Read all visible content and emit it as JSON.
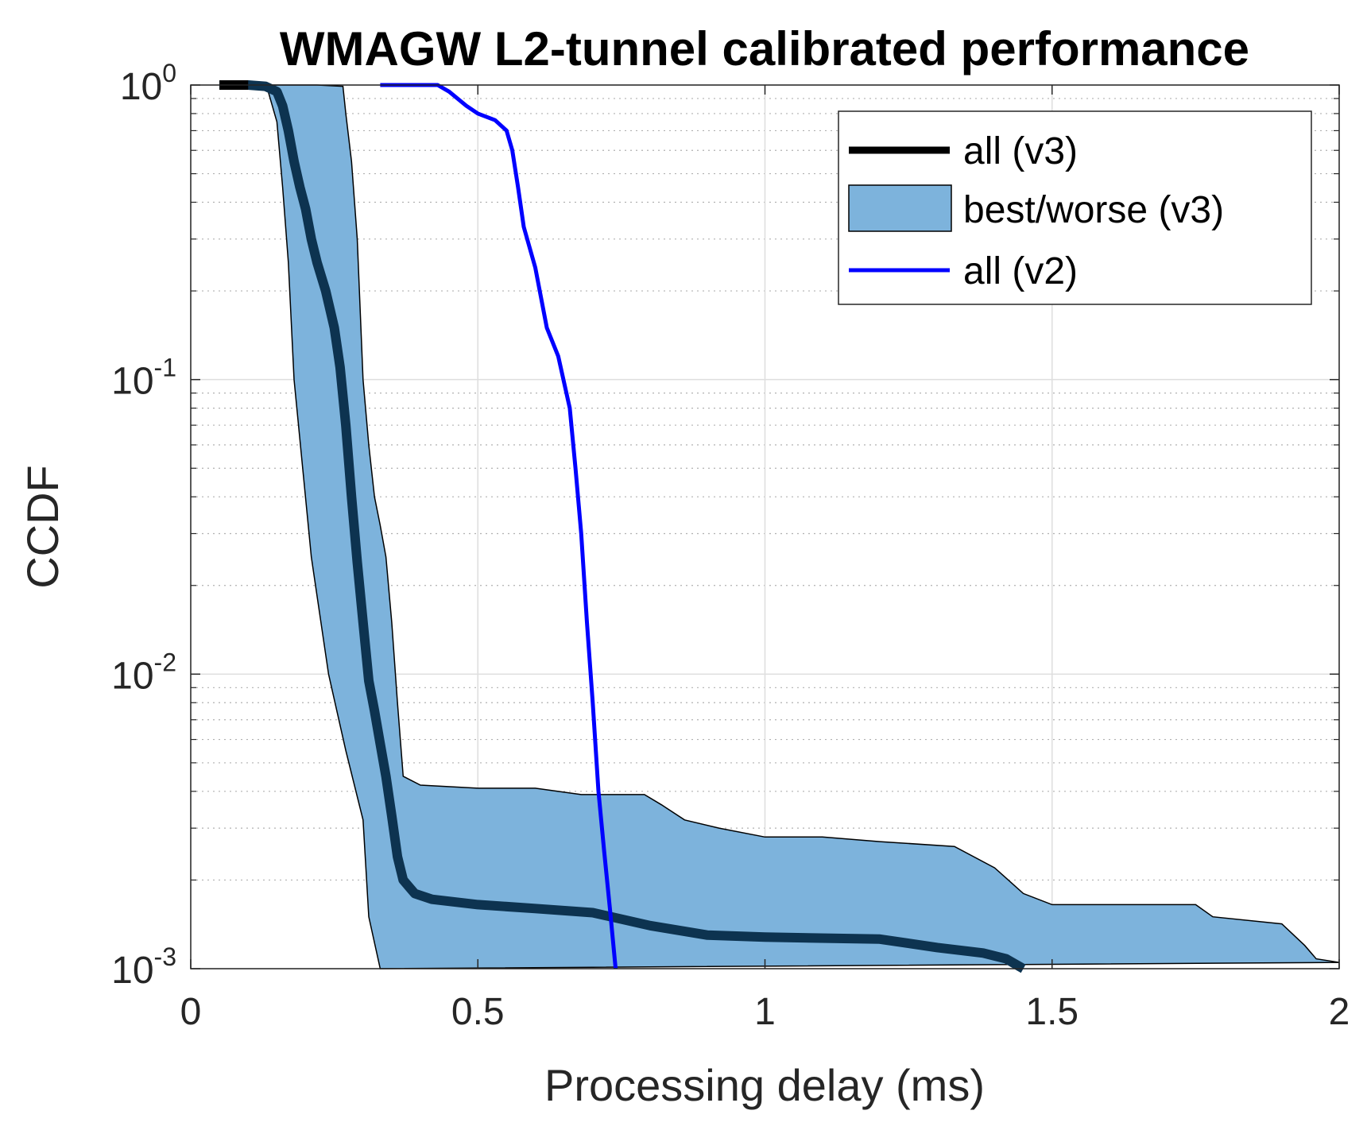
{
  "chart_data": {
    "type": "line",
    "title": "WMAGW L2-tunnel calibrated performance",
    "xlabel": "Processing delay (ms)",
    "ylabel": "CCDF",
    "xlim": [
      0,
      2
    ],
    "ylim": [
      0.001,
      1
    ],
    "yscale": "log",
    "grid": true,
    "legend_position": "top-right",
    "x_ticks": [
      {
        "value": 0,
        "label": "0"
      },
      {
        "value": 0.5,
        "label": "0.5"
      },
      {
        "value": 1,
        "label": "1"
      },
      {
        "value": 1.5,
        "label": "1.5"
      },
      {
        "value": 2,
        "label": "2"
      }
    ],
    "y_ticks": [
      {
        "value": 1,
        "base": "10",
        "exp": "0"
      },
      {
        "value": 0.1,
        "base": "10",
        "exp": "-1"
      },
      {
        "value": 0.01,
        "base": "10",
        "exp": "-2"
      },
      {
        "value": 0.001,
        "base": "10",
        "exp": "-3"
      }
    ],
    "series": [
      {
        "name": "all (v3)",
        "kind": "line",
        "color": "#0d3350",
        "legend_color": "#000000",
        "points": [
          [
            0.05,
            1
          ],
          [
            0.1,
            1
          ],
          [
            0.13,
            0.99
          ],
          [
            0.15,
            0.95
          ],
          [
            0.16,
            0.85
          ],
          [
            0.17,
            0.7
          ],
          [
            0.18,
            0.55
          ],
          [
            0.19,
            0.45
          ],
          [
            0.2,
            0.38
          ],
          [
            0.21,
            0.3
          ],
          [
            0.22,
            0.25
          ],
          [
            0.235,
            0.2
          ],
          [
            0.25,
            0.15
          ],
          [
            0.26,
            0.11
          ],
          [
            0.27,
            0.07
          ],
          [
            0.28,
            0.04
          ],
          [
            0.29,
            0.024
          ],
          [
            0.3,
            0.015
          ],
          [
            0.31,
            0.0095
          ],
          [
            0.32,
            0.0075
          ],
          [
            0.33,
            0.0058
          ],
          [
            0.34,
            0.0045
          ],
          [
            0.35,
            0.0033
          ],
          [
            0.36,
            0.0024
          ],
          [
            0.37,
            0.002
          ],
          [
            0.39,
            0.0018
          ],
          [
            0.42,
            0.00172
          ],
          [
            0.5,
            0.00165
          ],
          [
            0.6,
            0.0016
          ],
          [
            0.7,
            0.00155
          ],
          [
            0.8,
            0.0014
          ],
          [
            0.9,
            0.0013
          ],
          [
            1.0,
            0.00128
          ],
          [
            1.2,
            0.00126
          ],
          [
            1.3,
            0.00118
          ],
          [
            1.38,
            0.00113
          ],
          [
            1.42,
            0.00108
          ],
          [
            1.45,
            0.001
          ]
        ]
      },
      {
        "name": "best/worse (v3)",
        "kind": "band",
        "color": "#7db3dc",
        "edge_color": "#000000",
        "upper": [
          [
            0.05,
            1
          ],
          [
            0.22,
            1
          ],
          [
            0.265,
            0.99
          ],
          [
            0.27,
            0.8
          ],
          [
            0.28,
            0.55
          ],
          [
            0.29,
            0.3
          ],
          [
            0.3,
            0.1
          ],
          [
            0.31,
            0.06
          ],
          [
            0.32,
            0.04
          ],
          [
            0.33,
            0.032
          ],
          [
            0.34,
            0.025
          ],
          [
            0.35,
            0.015
          ],
          [
            0.36,
            0.008
          ],
          [
            0.365,
            0.006
          ],
          [
            0.37,
            0.0045
          ],
          [
            0.4,
            0.0042
          ],
          [
            0.5,
            0.0041
          ],
          [
            0.6,
            0.0041
          ],
          [
            0.68,
            0.0039
          ],
          [
            0.79,
            0.0039
          ],
          [
            0.82,
            0.0036
          ],
          [
            0.86,
            0.0032
          ],
          [
            0.92,
            0.003
          ],
          [
            1.0,
            0.0028
          ],
          [
            1.1,
            0.0028
          ],
          [
            1.2,
            0.0027
          ],
          [
            1.33,
            0.0026
          ],
          [
            1.4,
            0.0022
          ],
          [
            1.45,
            0.0018
          ],
          [
            1.5,
            0.00165
          ],
          [
            1.75,
            0.00165
          ],
          [
            1.78,
            0.0015
          ],
          [
            1.9,
            0.00142
          ],
          [
            1.94,
            0.0012
          ],
          [
            1.96,
            0.00108
          ],
          [
            2.0,
            0.00105
          ]
        ],
        "lower": [
          [
            0.05,
            1
          ],
          [
            0.1,
            1
          ],
          [
            0.135,
            0.95
          ],
          [
            0.15,
            0.75
          ],
          [
            0.16,
            0.45
          ],
          [
            0.17,
            0.25
          ],
          [
            0.18,
            0.1
          ],
          [
            0.21,
            0.025
          ],
          [
            0.24,
            0.01
          ],
          [
            0.27,
            0.0055
          ],
          [
            0.3,
            0.0032
          ],
          [
            0.31,
            0.0015
          ],
          [
            0.33,
            0.001
          ]
        ]
      },
      {
        "name": "all (v2)",
        "kind": "line",
        "color": "#0000ff",
        "points": [
          [
            0.33,
            1
          ],
          [
            0.43,
            1
          ],
          [
            0.45,
            0.95
          ],
          [
            0.48,
            0.85
          ],
          [
            0.5,
            0.8
          ],
          [
            0.53,
            0.76
          ],
          [
            0.55,
            0.7
          ],
          [
            0.56,
            0.6
          ],
          [
            0.57,
            0.45
          ],
          [
            0.58,
            0.33
          ],
          [
            0.6,
            0.24
          ],
          [
            0.62,
            0.15
          ],
          [
            0.64,
            0.12
          ],
          [
            0.66,
            0.08
          ],
          [
            0.67,
            0.05
          ],
          [
            0.68,
            0.03
          ],
          [
            0.69,
            0.015
          ],
          [
            0.7,
            0.008
          ],
          [
            0.71,
            0.004
          ],
          [
            0.72,
            0.0025
          ],
          [
            0.73,
            0.0016
          ],
          [
            0.74,
            0.001
          ]
        ]
      }
    ]
  }
}
